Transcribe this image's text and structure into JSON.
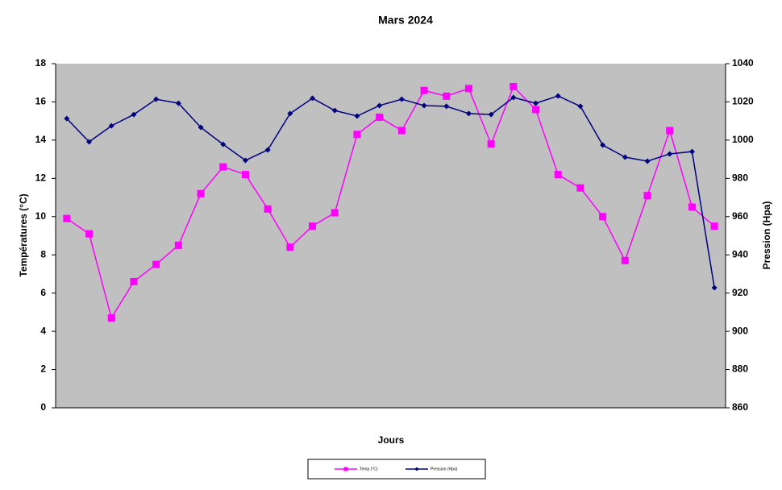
{
  "chart_data": {
    "type": "line",
    "title": "Mars 2024",
    "xlabel": "Jours",
    "ylabel": "Températures (°C)",
    "y2label": "Pression (Hpa)",
    "categories": [
      null,
      null,
      null,
      null,
      null,
      null,
      null,
      null,
      null,
      null,
      null,
      null,
      null,
      null,
      null,
      null,
      null,
      null,
      null,
      null,
      null,
      null,
      null,
      null,
      null,
      null,
      null,
      null,
      null,
      null
    ],
    "series": [
      {
        "name": "Temp (°C)",
        "color": "#ff00ff",
        "marker": "square",
        "values": [
          9.9,
          9.1,
          4.7,
          6.6,
          7.5,
          8.5,
          11.2,
          12.6,
          12.2,
          10.4,
          8.4,
          9.5,
          10.2,
          14.3,
          15.2,
          14.5,
          16.6,
          16.3,
          16.7,
          13.8,
          16.8,
          15.6,
          12.2,
          11.5,
          10.0,
          7.7,
          11.1,
          14.5,
          10.5,
          9.5
        ]
      },
      {
        "name": "Pression (Hpa)",
        "color": "#000080",
        "marker": "diamond",
        "axis": "y2",
        "values": [
          1011.3,
          999.1,
          1007.5,
          1013.4,
          1021.4,
          1019.3,
          1006.7,
          997.8,
          989.4,
          994.9,
          1013.9,
          1021.9,
          1015.5,
          1012.6,
          1018.1,
          1021.4,
          1018.1,
          1017.7,
          1013.9,
          1013.4,
          1022.3,
          1019.3,
          1023.1,
          1017.7,
          997.4,
          991.1,
          989.0,
          992.8,
          994.0,
          922.8
        ]
      }
    ],
    "ylim": [
      0,
      18
    ],
    "yticks": [
      0,
      2,
      4,
      6,
      8,
      10,
      12,
      14,
      16,
      18
    ],
    "y2lim": [
      860,
      1040
    ],
    "y2ticks": [
      860,
      880,
      900,
      920,
      940,
      960,
      980,
      1000,
      1020,
      1040
    ],
    "grid": false,
    "legend": "bottom",
    "plot_background": "#c0c0c0"
  }
}
